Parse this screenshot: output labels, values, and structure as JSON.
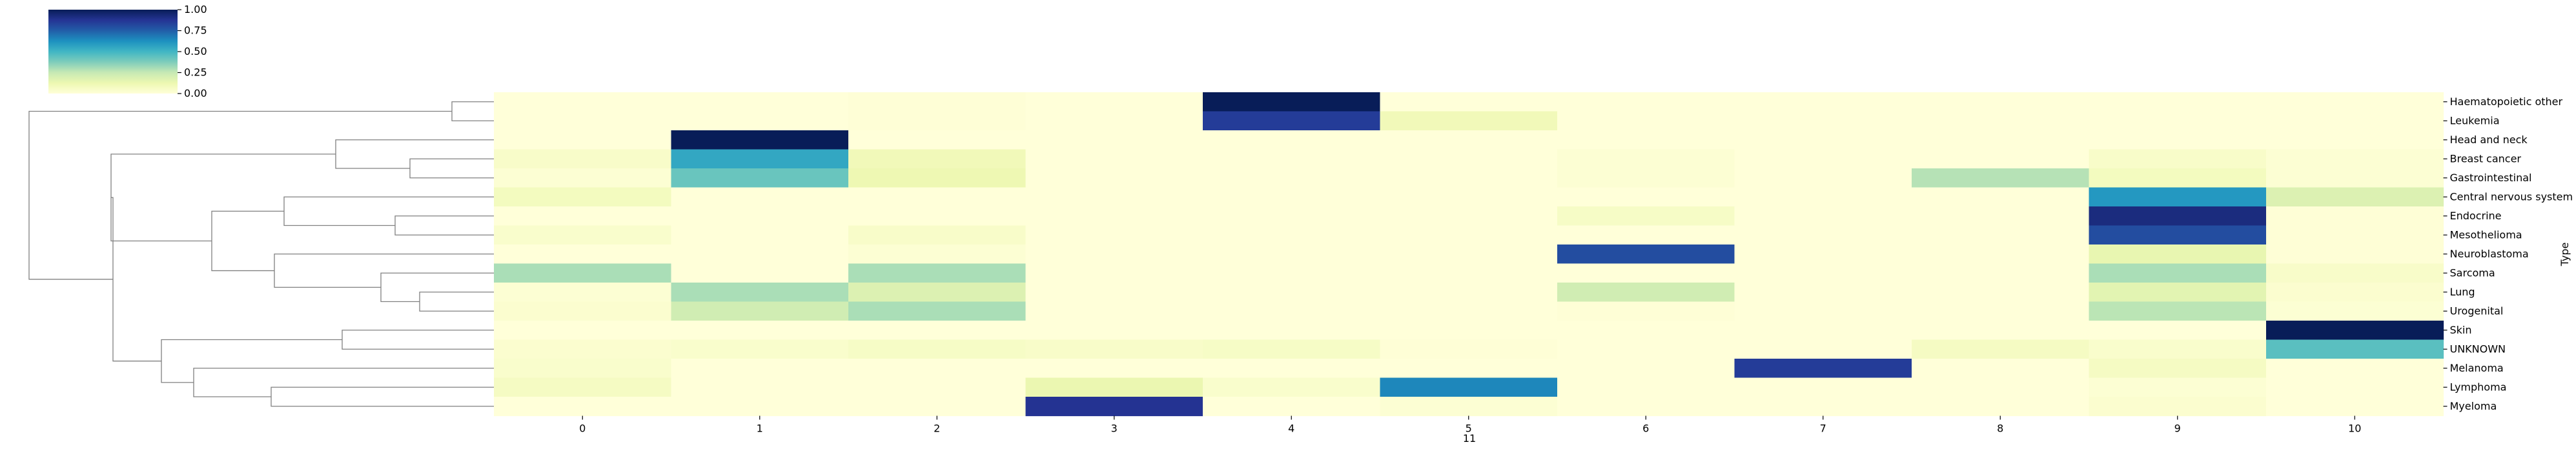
{
  "chart_data": {
    "type": "heatmap",
    "title": "",
    "xlabel": "11",
    "ylabel": "Type",
    "x": [
      "0",
      "1",
      "2",
      "3",
      "4",
      "5",
      "6",
      "7",
      "8",
      "9",
      "10"
    ],
    "rows": [
      "Haematopoietic other",
      "Leukemia",
      "Head and neck",
      "Breast cancer",
      "Gastrointestinal",
      "Central nervous system",
      "Endocrine",
      "Mesothelioma",
      "Neuroblastoma",
      "Sarcoma",
      "Lung",
      "Urogenital",
      "Skin",
      "UNKNOWN",
      "Melanoma",
      "Lymphoma",
      "Myeloma"
    ],
    "values": [
      [
        0.0,
        0.0,
        0.01,
        0.0,
        1.0,
        0.0,
        0.0,
        0.0,
        0.0,
        0.0,
        0.0
      ],
      [
        0.0,
        0.0,
        0.01,
        0.0,
        0.85,
        0.1,
        0.0,
        0.0,
        0.0,
        0.0,
        0.0
      ],
      [
        0.0,
        1.0,
        0.0,
        0.0,
        0.0,
        0.0,
        0.0,
        0.0,
        0.0,
        0.0,
        0.0
      ],
      [
        0.05,
        0.55,
        0.1,
        0.0,
        0.0,
        0.0,
        0.02,
        0.0,
        0.0,
        0.05,
        0.02
      ],
      [
        0.02,
        0.42,
        0.12,
        0.0,
        0.0,
        0.0,
        0.02,
        0.0,
        0.28,
        0.08,
        0.02
      ],
      [
        0.08,
        0.0,
        0.0,
        0.0,
        0.0,
        0.0,
        0.0,
        0.0,
        0.0,
        0.6,
        0.18
      ],
      [
        0.0,
        0.0,
        0.0,
        0.0,
        0.0,
        0.0,
        0.06,
        0.0,
        0.0,
        0.92,
        0.01
      ],
      [
        0.04,
        0.0,
        0.05,
        0.0,
        0.0,
        0.0,
        0.0,
        0.0,
        0.0,
        0.8,
        0.01
      ],
      [
        0.0,
        0.0,
        0.02,
        0.0,
        0.0,
        0.0,
        0.8,
        0.0,
        0.0,
        0.14,
        0.01
      ],
      [
        0.3,
        0.0,
        0.3,
        0.0,
        0.0,
        0.0,
        0.0,
        0.0,
        0.0,
        0.3,
        0.05
      ],
      [
        0.02,
        0.3,
        0.18,
        0.0,
        0.0,
        0.0,
        0.22,
        0.0,
        0.0,
        0.16,
        0.03
      ],
      [
        0.03,
        0.22,
        0.3,
        0.0,
        0.0,
        0.0,
        0.01,
        0.0,
        0.0,
        0.27,
        0.02
      ],
      [
        0.0,
        0.0,
        0.0,
        0.0,
        0.0,
        0.0,
        0.0,
        0.0,
        0.0,
        0.0,
        1.0
      ],
      [
        0.03,
        0.04,
        0.06,
        0.05,
        0.06,
        0.01,
        0.0,
        0.0,
        0.07,
        0.04,
        0.45
      ],
      [
        0.04,
        0.0,
        0.0,
        0.0,
        0.0,
        0.0,
        0.0,
        0.85,
        0.0,
        0.07,
        0.0
      ],
      [
        0.07,
        0.0,
        0.0,
        0.13,
        0.04,
        0.65,
        0.0,
        0.0,
        0.0,
        0.02,
        0.0
      ],
      [
        0.0,
        0.0,
        0.0,
        0.88,
        0.0,
        0.02,
        0.0,
        0.0,
        0.0,
        0.03,
        0.0
      ]
    ],
    "colormap": "YlGnBu",
    "vmin": 0,
    "vmax": 1,
    "colorbar_ticks": [
      "0.00",
      "0.25",
      "0.50",
      "0.75",
      "1.00"
    ],
    "colorbar_placement": "top-left",
    "row_dendrogram": true,
    "grid": false
  }
}
